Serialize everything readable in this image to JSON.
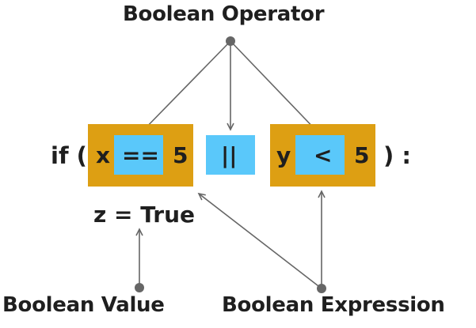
{
  "labels": {
    "top": "Boolean Operator",
    "bottom_left": "Boolean Value",
    "bottom_right": "Boolean Expression"
  },
  "code": {
    "if_open": "if (",
    "left_var": "x",
    "left_op": "==",
    "left_val": "5",
    "or_op": "||",
    "right_var": "y",
    "right_op": "<",
    "right_val": "5",
    "close": ") :",
    "assign": "z = True"
  },
  "colors": {
    "expression_box": "#dd9f13",
    "operator_box": "#5ac8fa",
    "text": "#1f1f1f",
    "arrow": "#666666",
    "dot": "#666666"
  }
}
